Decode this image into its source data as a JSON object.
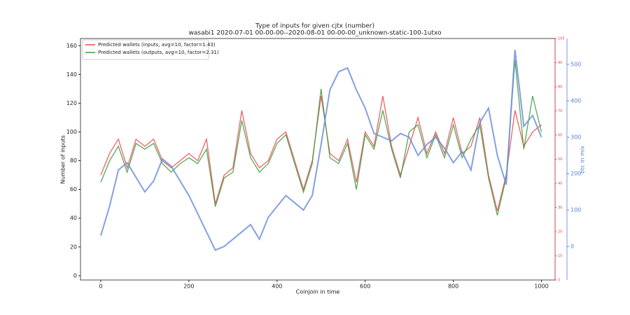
{
  "chart_data": {
    "type": "line",
    "title": "Type of inputs for given cjtx (number)",
    "subtitle": "wasabi1 2020-07-01 00-00-00--2020-08-01 00-00-00_unknown-static-100-1utxo",
    "xlabel": "Coinjoin in time",
    "ylabel": "Number of inputs",
    "y3label": "btc in mix",
    "xlim": [
      -46,
      1031
    ],
    "xticks": [
      0,
      200,
      400,
      600,
      800,
      1000
    ],
    "ylim": [
      -3,
      165
    ],
    "yticks": [
      0,
      20,
      40,
      60,
      80,
      100,
      120,
      140,
      160
    ],
    "y2lim": [
      0,
      100
    ],
    "y2ticks": [
      0,
      10,
      20,
      30,
      40,
      50,
      60,
      70,
      80,
      90,
      100
    ],
    "y2color": "#e8474a",
    "y3lim": [
      -92,
      571
    ],
    "y3ticks": [
      0,
      100,
      200,
      300,
      400,
      500
    ],
    "y3color": "#5b7fd6",
    "legend": "upper left",
    "x": [
      0,
      20,
      40,
      60,
      80,
      100,
      120,
      140,
      160,
      180,
      200,
      220,
      240,
      260,
      280,
      300,
      320,
      340,
      360,
      380,
      400,
      420,
      440,
      460,
      480,
      500,
      520,
      540,
      560,
      580,
      600,
      620,
      640,
      660,
      680,
      700,
      720,
      740,
      760,
      780,
      800,
      820,
      840,
      860,
      880,
      900,
      920,
      940,
      960,
      980,
      1000
    ],
    "series": [
      {
        "name": "Predicted wallets (inputs, avg=10, factor=1.43)",
        "color": "#e8474a",
        "values": [
          70,
          85,
          95,
          75,
          95,
          90,
          95,
          80,
          75,
          80,
          85,
          80,
          95,
          50,
          70,
          75,
          115,
          85,
          75,
          80,
          95,
          100,
          80,
          60,
          80,
          125,
          85,
          80,
          95,
          65,
          100,
          90,
          125,
          90,
          70,
          90,
          110,
          85,
          100,
          85,
          110,
          85,
          90,
          110,
          70,
          45,
          70,
          115,
          90,
          100,
          105
        ]
      },
      {
        "name": "Predicted wallets (outputs, avg=10, factor=2.31)",
        "color": "#3a9a3a",
        "values": [
          65,
          80,
          90,
          72,
          92,
          88,
          92,
          78,
          72,
          78,
          82,
          78,
          88,
          48,
          68,
          72,
          108,
          82,
          72,
          78,
          92,
          98,
          78,
          58,
          78,
          130,
          82,
          78,
          92,
          60,
          98,
          88,
          115,
          88,
          68,
          100,
          105,
          82,
          98,
          82,
          105,
          82,
          95,
          105,
          68,
          42,
          68,
          150,
          88,
          125,
          100
        ]
      },
      {
        "name": null,
        "axis": "y3",
        "color": "#6f8fdc",
        "values": [
          30,
          110,
          210,
          230,
          190,
          150,
          180,
          240,
          220,
          180,
          140,
          90,
          40,
          -10,
          0,
          20,
          40,
          60,
          20,
          80,
          110,
          140,
          120,
          100,
          140,
          280,
          430,
          480,
          490,
          430,
          380,
          310,
          300,
          290,
          310,
          300,
          250,
          280,
          300,
          270,
          230,
          260,
          210,
          340,
          380,
          250,
          170,
          540,
          330,
          360,
          300
        ]
      }
    ]
  }
}
